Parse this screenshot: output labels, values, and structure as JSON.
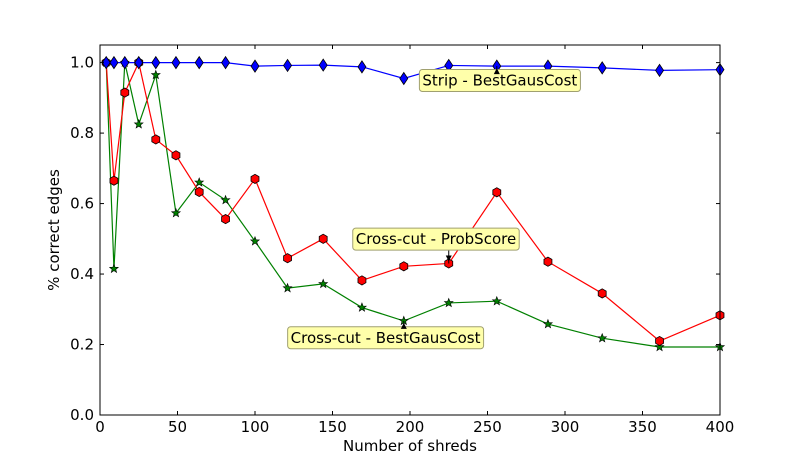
{
  "chart_data": {
    "type": "line",
    "title": "",
    "xlabel": "Number of shreds",
    "ylabel": "% correct edges",
    "xlim": [
      0,
      400
    ],
    "ylim": [
      0,
      1.05
    ],
    "xticks": [
      0,
      50,
      100,
      150,
      200,
      250,
      300,
      350,
      400
    ],
    "xtick_labels": [
      "0",
      "50",
      "100",
      "150",
      "200",
      "250",
      "300",
      "350",
      "400"
    ],
    "yticks": [
      0,
      0.2,
      0.4,
      0.6,
      0.8,
      1.0
    ],
    "ytick_labels": [
      "0.0",
      "0.2",
      "0.4",
      "0.6",
      "0.8",
      "1.0"
    ],
    "grid": false,
    "legend": "none",
    "x": [
      4,
      9,
      16,
      25,
      36,
      49,
      64,
      81,
      100,
      121,
      144,
      169,
      196,
      225,
      256,
      289,
      324,
      361,
      400
    ],
    "series": [
      {
        "name": "Strip - BestGausCost",
        "color": "#0000ff",
        "marker": "diamond",
        "values": [
          1.0,
          1.0,
          1.0,
          1.0,
          1.0,
          1.0,
          1.0,
          1.0,
          0.99,
          0.992,
          0.993,
          0.988,
          0.955,
          0.992,
          0.99,
          0.99,
          0.985,
          0.978,
          0.98
        ]
      },
      {
        "name": "Cross-cut - ProbScore",
        "color": "#ff0000",
        "marker": "hexagon",
        "values": [
          1.0,
          0.665,
          0.915,
          1.0,
          0.782,
          0.737,
          0.633,
          0.556,
          0.67,
          0.445,
          0.5,
          0.382,
          0.422,
          0.43,
          0.632,
          0.435,
          0.345,
          0.21,
          0.283
        ]
      },
      {
        "name": "Cross-cut - BestGausCost",
        "color": "#008000",
        "marker": "star",
        "values": [
          1.0,
          0.415,
          1.0,
          0.825,
          0.965,
          0.573,
          0.66,
          0.61,
          0.493,
          0.36,
          0.372,
          0.305,
          0.267,
          0.318,
          0.323,
          0.258,
          0.218,
          0.193,
          0.193
        ]
      }
    ],
    "annotations": [
      {
        "text": "Strip - BestGausCost",
        "series": 0,
        "point_index": 14,
        "label_at": [
          208,
          0.935
        ]
      },
      {
        "text": "Cross-cut - ProbScore",
        "series": 1,
        "point_index": 13,
        "label_at": [
          165,
          0.485
        ]
      },
      {
        "text": "Cross-cut - BestGausCost",
        "series": 2,
        "point_index": 12,
        "label_at": [
          123,
          0.205
        ]
      }
    ],
    "annotation_box_color": "#ffffaa"
  }
}
